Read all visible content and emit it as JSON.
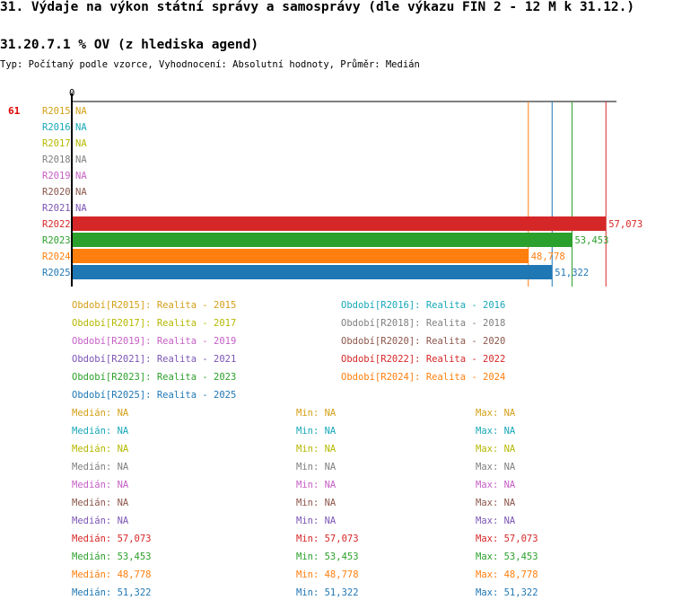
{
  "header": {
    "title": "31. Výdaje na výkon státní správy a samosprávy (dle výkazu FIN 2 - 12 M k 31.12.)",
    "subtitle": "31.20.7.1 % OV (z hlediska agend)",
    "meta": "Typ: Počítaný podle vzorce, Vyhodnocení: Absolutní hodnoty, Průměr: Medián"
  },
  "rank": "61",
  "chart_data": {
    "type": "bar",
    "orientation": "horizontal",
    "axis_zero_label": "0",
    "xlim": [
      0,
      58200
    ],
    "categories": [
      "R2015",
      "R2016",
      "R2017",
      "R2018",
      "R2019",
      "R2020",
      "R2021",
      "R2022",
      "R2023",
      "R2024",
      "R2025"
    ],
    "values": [
      null,
      null,
      null,
      null,
      null,
      null,
      null,
      57073,
      53453,
      48778,
      51322
    ],
    "value_labels": [
      "NA",
      "NA",
      "NA",
      "NA",
      "NA",
      "NA",
      "NA",
      "57,073",
      "53,453",
      "48,778",
      "51,322"
    ],
    "colors": [
      "#d4a017",
      "#17a8b8",
      "#b5b800",
      "#7f7f7f",
      "#c55fc5",
      "#8c564b",
      "#7b55b5",
      "#d62728",
      "#2ca02c",
      "#ff7f0e",
      "#1f77b4"
    ],
    "reference_lines": [
      {
        "value": 48778,
        "color": "#ff7f0e"
      },
      {
        "value": 51322,
        "color": "#1f77b4"
      },
      {
        "value": 53453,
        "color": "#2ca02c"
      },
      {
        "value": 57073,
        "color": "#d62728"
      }
    ]
  },
  "legend": [
    {
      "text": "Období[R2015]: Realita - 2015",
      "color": "#d4a017"
    },
    {
      "text": "Období[R2016]: Realita - 2016",
      "color": "#17a8b8"
    },
    {
      "text": "Období[R2017]: Realita - 2017",
      "color": "#b5b800"
    },
    {
      "text": "Období[R2018]: Realita - 2018",
      "color": "#7f7f7f"
    },
    {
      "text": "Období[R2019]: Realita - 2019",
      "color": "#c55fc5"
    },
    {
      "text": "Období[R2020]: Realita - 2020",
      "color": "#8c564b"
    },
    {
      "text": "Období[R2021]: Realita - 2021",
      "color": "#7b55b5"
    },
    {
      "text": "Období[R2022]: Realita - 2022",
      "color": "#d62728"
    },
    {
      "text": "Období[R2023]: Realita - 2023",
      "color": "#2ca02c"
    },
    {
      "text": "Období[R2024]: Realita - 2024",
      "color": "#ff7f0e"
    },
    {
      "text": "Období[R2025]: Realita - 2025",
      "color": "#1f77b4"
    }
  ],
  "stats": [
    {
      "median": "Medián: NA",
      "min": "Min: NA",
      "max": "Max: NA",
      "color": "#d4a017"
    },
    {
      "median": "Medián: NA",
      "min": "Min: NA",
      "max": "Max: NA",
      "color": "#17a8b8"
    },
    {
      "median": "Medián: NA",
      "min": "Min: NA",
      "max": "Max: NA",
      "color": "#b5b800"
    },
    {
      "median": "Medián: NA",
      "min": "Min: NA",
      "max": "Max: NA",
      "color": "#7f7f7f"
    },
    {
      "median": "Medián: NA",
      "min": "Min: NA",
      "max": "Max: NA",
      "color": "#c55fc5"
    },
    {
      "median": "Medián: NA",
      "min": "Min: NA",
      "max": "Max: NA",
      "color": "#8c564b"
    },
    {
      "median": "Medián: NA",
      "min": "Min: NA",
      "max": "Max: NA",
      "color": "#7b55b5"
    },
    {
      "median": "Medián: 57,073",
      "min": "Min: 57,073",
      "max": "Max: 57,073",
      "color": "#d62728"
    },
    {
      "median": "Medián: 53,453",
      "min": "Min: 53,453",
      "max": "Max: 53,453",
      "color": "#2ca02c"
    },
    {
      "median": "Medián: 48,778",
      "min": "Min: 48,778",
      "max": "Max: 48,778",
      "color": "#ff7f0e"
    },
    {
      "median": "Medián: 51,322",
      "min": "Min: 51,322",
      "max": "Max: 51,322",
      "color": "#1f77b4"
    }
  ]
}
